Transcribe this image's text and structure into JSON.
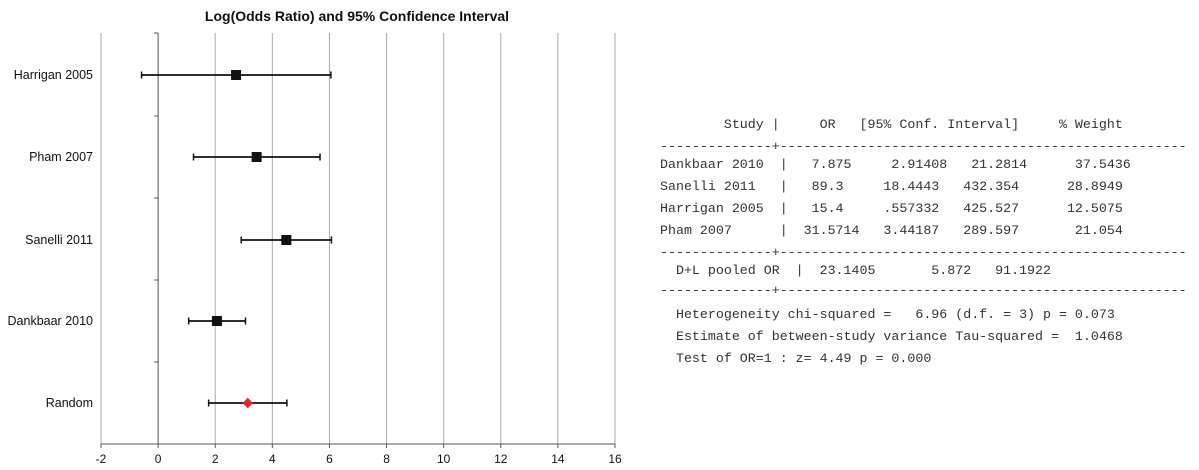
{
  "chart_data": {
    "type": "forest",
    "title": "Log(Odds Ratio) and 95% Confidence Interval",
    "xlim": [
      -2,
      16
    ],
    "xticks": [
      "-2",
      "0",
      "2",
      "4",
      "6",
      "8",
      "10",
      "12",
      "14",
      "16"
    ],
    "grid": true,
    "studies": [
      {
        "label": "Harrigan 2005",
        "estimate": 2.73,
        "lower": -0.58,
        "upper": 6.05,
        "marker": "square"
      },
      {
        "label": "Pham 2007",
        "estimate": 3.45,
        "lower": 1.24,
        "upper": 5.67,
        "marker": "square"
      },
      {
        "label": "Sanelli 2011",
        "estimate": 4.49,
        "lower": 2.91,
        "upper": 6.07,
        "marker": "square"
      },
      {
        "label": "Dankbaar 2010",
        "estimate": 2.06,
        "lower": 1.07,
        "upper": 3.06,
        "marker": "square"
      },
      {
        "label": "Random",
        "estimate": 3.14,
        "lower": 1.77,
        "upper": 4.51,
        "marker": "diamond"
      }
    ],
    "colors": {
      "square": "#111111",
      "diamond": "#e0262c",
      "grid": "#aaaaaa",
      "axis": "#555555"
    }
  },
  "results_table": {
    "header": "        Study |     OR   [95% Conf. Interval]     % Weight",
    "rule_top": "--------------+---------------------------------------------------",
    "rows": [
      "Dankbaar 2010  |   7.875     2.91408   21.2814      37.5436",
      "Sanelli 2011   |   89.3     18.4443   432.354      28.8949",
      "Harrigan 2005  |   15.4     .557332   425.527      12.5075",
      "Pham 2007      |  31.5714   3.44187   289.597       21.054"
    ],
    "rule_mid": "--------------+---------------------------------------------------",
    "pooled": "  D+L pooled OR  |  23.1405       5.872   91.1922",
    "rule_bottom": "--------------+---------------------------------------------------",
    "stats": [
      "  Heterogeneity chi-squared =   6.96 (d.f. = 3) p = 0.073",
      "  Estimate of between-study variance Tau-squared =  1.0468",
      "  Test of OR=1 : z= 4.49 p = 0.000"
    ]
  }
}
